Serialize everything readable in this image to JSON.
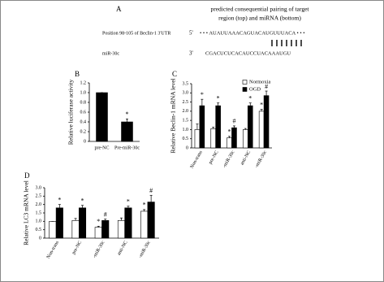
{
  "panel_a": {
    "label": "A",
    "caption": [
      "predicted consequential pairing of target",
      "region (top) and miRNA (bottom)"
    ],
    "target_label": "Position 98-105 of Beclin-1 3'UTR",
    "target_end": "5'",
    "target_seq": "• • • AUAUUAAACAGUACAUGUUUACA • • •",
    "mirna_label": "miR-30c",
    "mirna_end": "3'",
    "mirna_seq": "CGACUCUCACAUCCUACAAAUGU"
  },
  "chart_data": [
    {
      "type": "bar",
      "panel_label": "B",
      "ylabel": "Relative luciferase activity",
      "categories": [
        "pre-NC",
        "Pre-miR-30c"
      ],
      "series": [
        {
          "color": "#000000",
          "values": [
            1.0,
            0.4
          ],
          "errors": [
            0,
            0.06
          ],
          "markers": [
            null,
            "*"
          ]
        }
      ],
      "ylim": [
        0,
        1.2
      ],
      "yticks": [
        0,
        0.2,
        0.4,
        0.6,
        0.8,
        {
          "value": 1,
          "label": "1.0"
        },
        1.2
      ]
    },
    {
      "type": "bar",
      "panel_label": "C",
      "ylabel": "Relative Beclin-1 mRNA level",
      "categories": [
        "Non-trans",
        "pre-NC",
        "-miR-30c",
        "anti-NC",
        "-miR-30c"
      ],
      "series": [
        {
          "name": "Normoxia",
          "color": "#ffffff",
          "values": [
            1.0,
            1.05,
            0.55,
            1.0,
            2.0
          ],
          "errors": [
            0.3,
            0.08,
            0.08,
            0.06,
            0.1
          ],
          "markers": [
            null,
            null,
            "*",
            null,
            "*"
          ]
        },
        {
          "name": "OGD",
          "color": "#000000",
          "values": [
            2.3,
            2.3,
            1.1,
            2.3,
            2.85
          ],
          "errors": [
            0.35,
            0.15,
            0.1,
            0.15,
            0.25
          ],
          "markers": [
            "*",
            "*",
            "#",
            "*",
            "#"
          ]
        }
      ],
      "ylim": [
        0,
        3.5
      ],
      "yticks": [
        0,
        0.5,
        {
          "value": 1,
          "label": "1.0"
        },
        1.5,
        {
          "value": 2,
          "label": "2.0"
        },
        2.5,
        {
          "value": 3,
          "label": "3.0"
        },
        3.5
      ],
      "legend": "top-right"
    },
    {
      "type": "bar",
      "panel_label": "D",
      "ylabel": "Relative LC3 mRNA level",
      "categories": [
        "Non-trans",
        "pre-NC",
        "-miR-30c",
        "anti-NC",
        "-miR-30c"
      ],
      "series": [
        {
          "color": "#ffffff",
          "values": [
            1.0,
            1.05,
            0.65,
            1.05,
            1.6
          ],
          "errors": [
            0,
            0.12,
            0.06,
            0.15,
            0.1
          ],
          "markers": [
            null,
            null,
            "*",
            null,
            "*"
          ]
        },
        {
          "color": "#000000",
          "values": [
            1.8,
            1.8,
            1.05,
            1.8,
            2.15
          ],
          "errors": [
            0.2,
            0.15,
            0.08,
            0.1,
            0.4
          ],
          "markers": [
            "*",
            "*",
            "#",
            "*",
            "#"
          ]
        }
      ],
      "ylim": [
        0,
        3.0
      ],
      "yticks": [
        0,
        0.5,
        {
          "value": 1,
          "label": "1.0"
        },
        1.5,
        {
          "value": 2,
          "label": "2.0"
        },
        2.5,
        {
          "value": 3,
          "label": "3.0"
        }
      ]
    }
  ]
}
